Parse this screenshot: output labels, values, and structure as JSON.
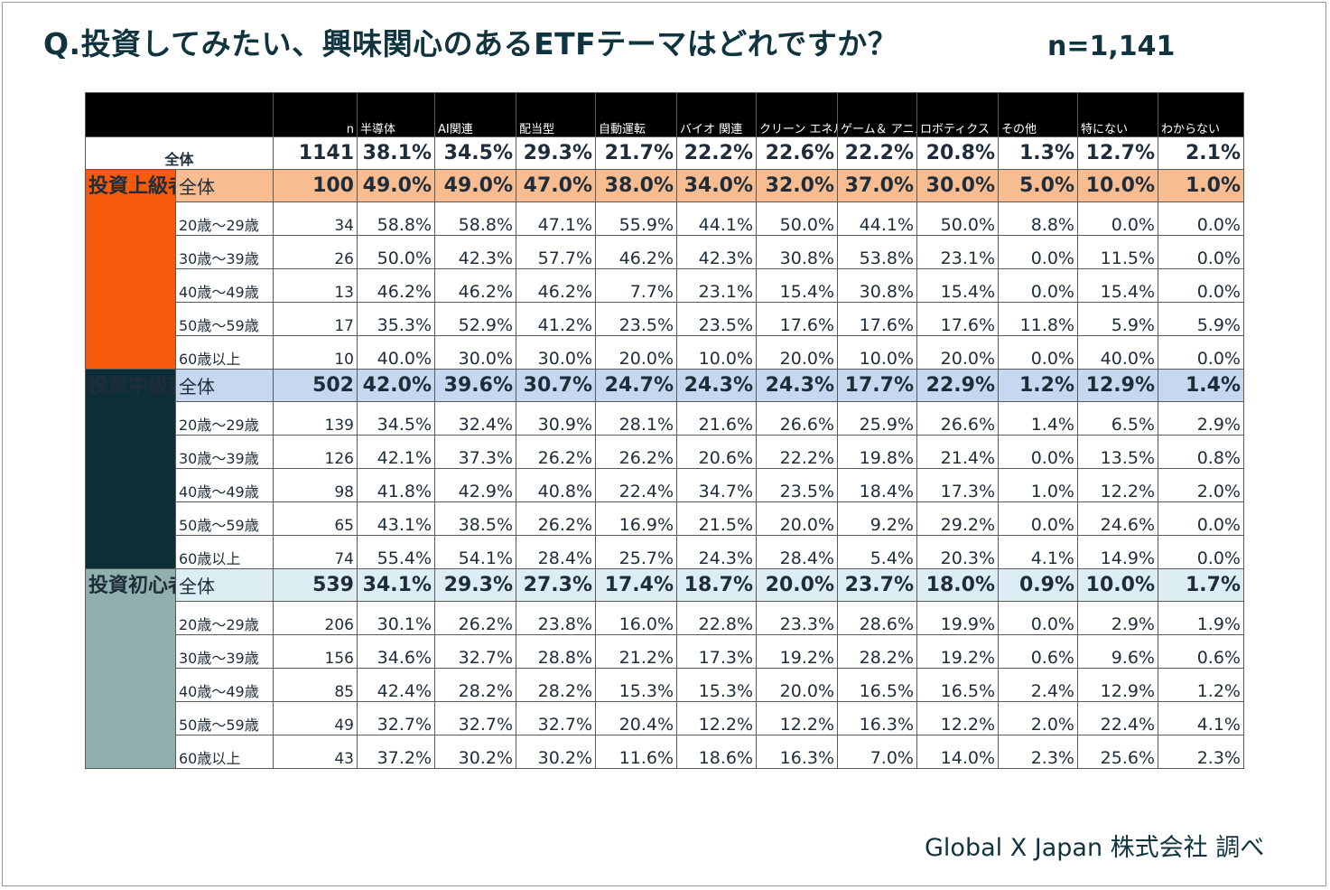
{
  "title": "Q.投資してみたい、興味関心のあるETFテーマはどれですか？",
  "n_label": "n=1,141",
  "source": "Global X Japan 株式会社 調べ",
  "chart_data": {
    "type": "table",
    "columns": [
      "n",
      "半導体",
      "AI関連",
      "配当型",
      "自動運転",
      "バイオ\n関連",
      "クリーン\nエネルギー",
      "ゲーム＆\nアニメ",
      "ロボティクス",
      "その他",
      "特にない",
      "わからない"
    ],
    "total": {
      "label": "全体",
      "values": [
        "1141",
        "38.1%",
        "34.5%",
        "29.3%",
        "21.7%",
        "22.2%",
        "22.6%",
        "22.2%",
        "20.8%",
        "1.3%",
        "12.7%",
        "2.1%"
      ]
    },
    "groups": [
      {
        "name": "投資上級者",
        "rows": [
          {
            "label": "全体",
            "values": [
              "100",
              "49.0%",
              "49.0%",
              "47.0%",
              "38.0%",
              "34.0%",
              "32.0%",
              "37.0%",
              "30.0%",
              "5.0%",
              "10.0%",
              "1.0%"
            ]
          },
          {
            "label": "20歳～29歳",
            "values": [
              "34",
              "58.8%",
              "58.8%",
              "47.1%",
              "55.9%",
              "44.1%",
              "50.0%",
              "44.1%",
              "50.0%",
              "8.8%",
              "0.0%",
              "0.0%"
            ]
          },
          {
            "label": "30歳～39歳",
            "values": [
              "26",
              "50.0%",
              "42.3%",
              "57.7%",
              "46.2%",
              "42.3%",
              "30.8%",
              "53.8%",
              "23.1%",
              "0.0%",
              "11.5%",
              "0.0%"
            ]
          },
          {
            "label": "40歳～49歳",
            "values": [
              "13",
              "46.2%",
              "46.2%",
              "46.2%",
              "7.7%",
              "23.1%",
              "15.4%",
              "30.8%",
              "15.4%",
              "0.0%",
              "15.4%",
              "0.0%"
            ]
          },
          {
            "label": "50歳～59歳",
            "values": [
              "17",
              "35.3%",
              "52.9%",
              "41.2%",
              "23.5%",
              "23.5%",
              "17.6%",
              "17.6%",
              "17.6%",
              "11.8%",
              "5.9%",
              "5.9%"
            ]
          },
          {
            "label": "60歳以上",
            "values": [
              "10",
              "40.0%",
              "30.0%",
              "30.0%",
              "20.0%",
              "10.0%",
              "20.0%",
              "10.0%",
              "20.0%",
              "0.0%",
              "40.0%",
              "0.0%"
            ]
          }
        ]
      },
      {
        "name": "投資中級者",
        "rows": [
          {
            "label": "全体",
            "values": [
              "502",
              "42.0%",
              "39.6%",
              "30.7%",
              "24.7%",
              "24.3%",
              "24.3%",
              "17.7%",
              "22.9%",
              "1.2%",
              "12.9%",
              "1.4%"
            ]
          },
          {
            "label": "20歳～29歳",
            "values": [
              "139",
              "34.5%",
              "32.4%",
              "30.9%",
              "28.1%",
              "21.6%",
              "26.6%",
              "25.9%",
              "26.6%",
              "1.4%",
              "6.5%",
              "2.9%"
            ]
          },
          {
            "label": "30歳～39歳",
            "values": [
              "126",
              "42.1%",
              "37.3%",
              "26.2%",
              "26.2%",
              "20.6%",
              "22.2%",
              "19.8%",
              "21.4%",
              "0.0%",
              "13.5%",
              "0.8%"
            ]
          },
          {
            "label": "40歳～49歳",
            "values": [
              "98",
              "41.8%",
              "42.9%",
              "40.8%",
              "22.4%",
              "34.7%",
              "23.5%",
              "18.4%",
              "17.3%",
              "1.0%",
              "12.2%",
              "2.0%"
            ]
          },
          {
            "label": "50歳～59歳",
            "values": [
              "65",
              "43.1%",
              "38.5%",
              "26.2%",
              "16.9%",
              "21.5%",
              "20.0%",
              "9.2%",
              "29.2%",
              "0.0%",
              "24.6%",
              "0.0%"
            ]
          },
          {
            "label": "60歳以上",
            "values": [
              "74",
              "55.4%",
              "54.1%",
              "28.4%",
              "25.7%",
              "24.3%",
              "28.4%",
              "5.4%",
              "20.3%",
              "4.1%",
              "14.9%",
              "0.0%"
            ]
          }
        ]
      },
      {
        "name": "投資初心者",
        "rows": [
          {
            "label": "全体",
            "values": [
              "539",
              "34.1%",
              "29.3%",
              "27.3%",
              "17.4%",
              "18.7%",
              "20.0%",
              "23.7%",
              "18.0%",
              "0.9%",
              "10.0%",
              "1.7%"
            ]
          },
          {
            "label": "20歳～29歳",
            "values": [
              "206",
              "30.1%",
              "26.2%",
              "23.8%",
              "16.0%",
              "22.8%",
              "23.3%",
              "28.6%",
              "19.9%",
              "0.0%",
              "2.9%",
              "1.9%"
            ]
          },
          {
            "label": "30歳～39歳",
            "values": [
              "156",
              "34.6%",
              "32.7%",
              "28.8%",
              "21.2%",
              "17.3%",
              "19.2%",
              "28.2%",
              "19.2%",
              "0.6%",
              "9.6%",
              "0.6%"
            ]
          },
          {
            "label": "40歳～49歳",
            "values": [
              "85",
              "42.4%",
              "28.2%",
              "28.2%",
              "15.3%",
              "15.3%",
              "20.0%",
              "16.5%",
              "16.5%",
              "2.4%",
              "12.9%",
              "1.2%"
            ]
          },
          {
            "label": "50歳～59歳",
            "values": [
              "49",
              "32.7%",
              "32.7%",
              "32.7%",
              "20.4%",
              "12.2%",
              "12.2%",
              "16.3%",
              "12.2%",
              "2.0%",
              "22.4%",
              "4.1%"
            ]
          },
          {
            "label": "60歳以上",
            "values": [
              "43",
              "37.2%",
              "30.2%",
              "30.2%",
              "11.6%",
              "18.6%",
              "16.3%",
              "7.0%",
              "14.0%",
              "2.3%",
              "25.6%",
              "2.3%"
            ]
          }
        ]
      }
    ]
  },
  "colors": {
    "header_bg": "#000000",
    "advanced": "#f65a0b",
    "advanced_total_bg": "#f7bd90",
    "intermediate": "#0c2e36",
    "intermediate_total_bg": "#c5d8ef",
    "beginner": "#8fb0ad",
    "beginner_total_bg": "#dcedf4",
    "title_text": "#0f3440"
  }
}
